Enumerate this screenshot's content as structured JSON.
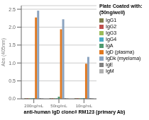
{
  "chart_data": {
    "type": "bar",
    "title": "Plate Coated with:\n(50ng/well)",
    "xlabel": "anti-human IgD clone# RM123 (primary Ab)",
    "ylabel": "Abs (405nm)",
    "categories": [
      "200ng/mL",
      "50ng/mL",
      "10ng/mL"
    ],
    "series": [
      {
        "name": "IgG1",
        "color": "#7f7f4f",
        "values": [
          0.02,
          0.02,
          0.02
        ]
      },
      {
        "name": "IgG2",
        "color": "#c0504d",
        "values": [
          0.02,
          0.02,
          0.02
        ]
      },
      {
        "name": "IgG3",
        "color": "#9bbb59",
        "values": [
          0.02,
          0.02,
          0.02
        ]
      },
      {
        "name": "IgG4",
        "color": "#4bacc6",
        "values": [
          0.02,
          0.02,
          0.02
        ]
      },
      {
        "name": "IgA",
        "color": "#4e9a6f",
        "values": [
          0.02,
          0.06,
          0.02
        ]
      },
      {
        "name": "IgD (plasma)",
        "color": "#e07820",
        "values": [
          2.27,
          1.94,
          0.98
        ]
      },
      {
        "name": "IgDk (myeloma)",
        "color": "#8ca4c0",
        "values": [
          2.46,
          2.22,
          1.17
        ]
      },
      {
        "name": "IgE",
        "color": "#808080",
        "values": [
          0.02,
          0.02,
          0.02
        ]
      },
      {
        "name": "IgM",
        "color": "#b0b0b0",
        "values": [
          0.02,
          0.02,
          0.02
        ]
      }
    ],
    "ylim": [
      0,
      2.6
    ],
    "yticks": [
      {
        "value": 0,
        "label": "0.0"
      },
      0.5,
      {
        "value": 1.0,
        "label": "1.0"
      },
      1.5,
      {
        "value": 2.0,
        "label": "2.0"
      },
      2.5
    ],
    "grid": true,
    "legend": "right"
  }
}
